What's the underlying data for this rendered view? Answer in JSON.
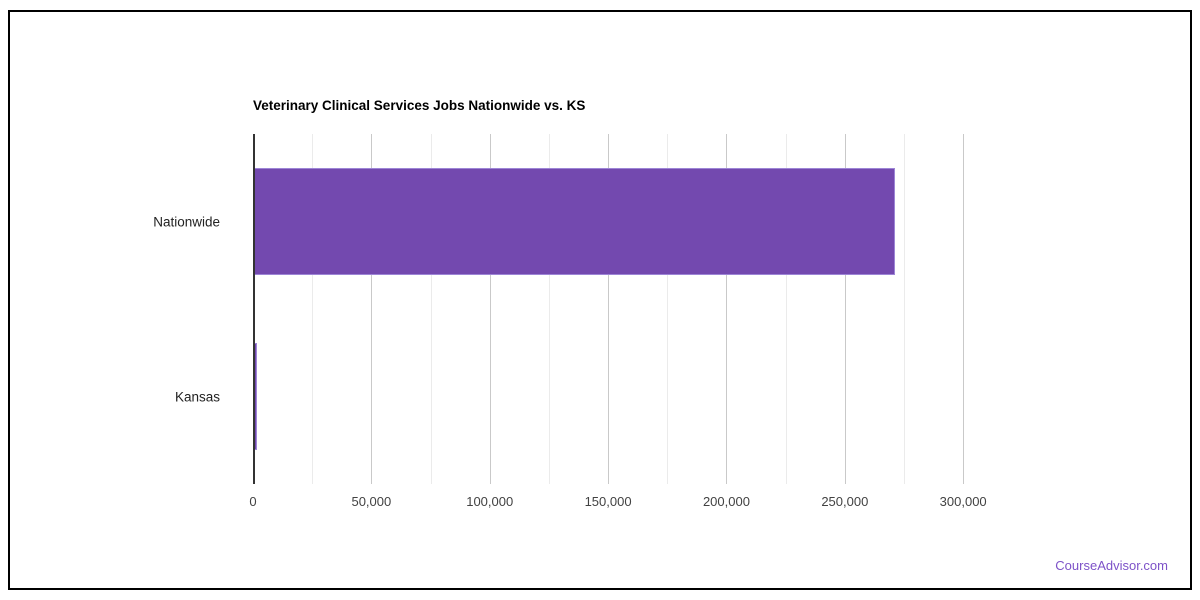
{
  "chart_data": {
    "type": "bar",
    "orientation": "horizontal",
    "title": "Veterinary Clinical Services Jobs Nationwide vs. KS",
    "categories": [
      "Nationwide",
      "Kansas"
    ],
    "values": [
      271000,
      1700
    ],
    "xlabel": "",
    "ylabel": "",
    "xlim": [
      0,
      324000
    ],
    "x_ticks": [
      0,
      50000,
      100000,
      150000,
      200000,
      250000,
      300000
    ],
    "x_tick_labels": [
      "0",
      "50,000",
      "100,000",
      "150,000",
      "200,000",
      "250,000",
      "300,000"
    ],
    "minor_tick_interval": 25000,
    "grid": true,
    "legend": "none",
    "bar_color": "#7349af",
    "bar_border_color": "#9d85d6",
    "major_grid_color": "#c9c9c9",
    "minor_grid_color": "#ebebeb",
    "axis_line_color": "#333333"
  },
  "footer": {
    "link_label": "CourseAdvisor.com",
    "link_color": "#7d52c8"
  }
}
